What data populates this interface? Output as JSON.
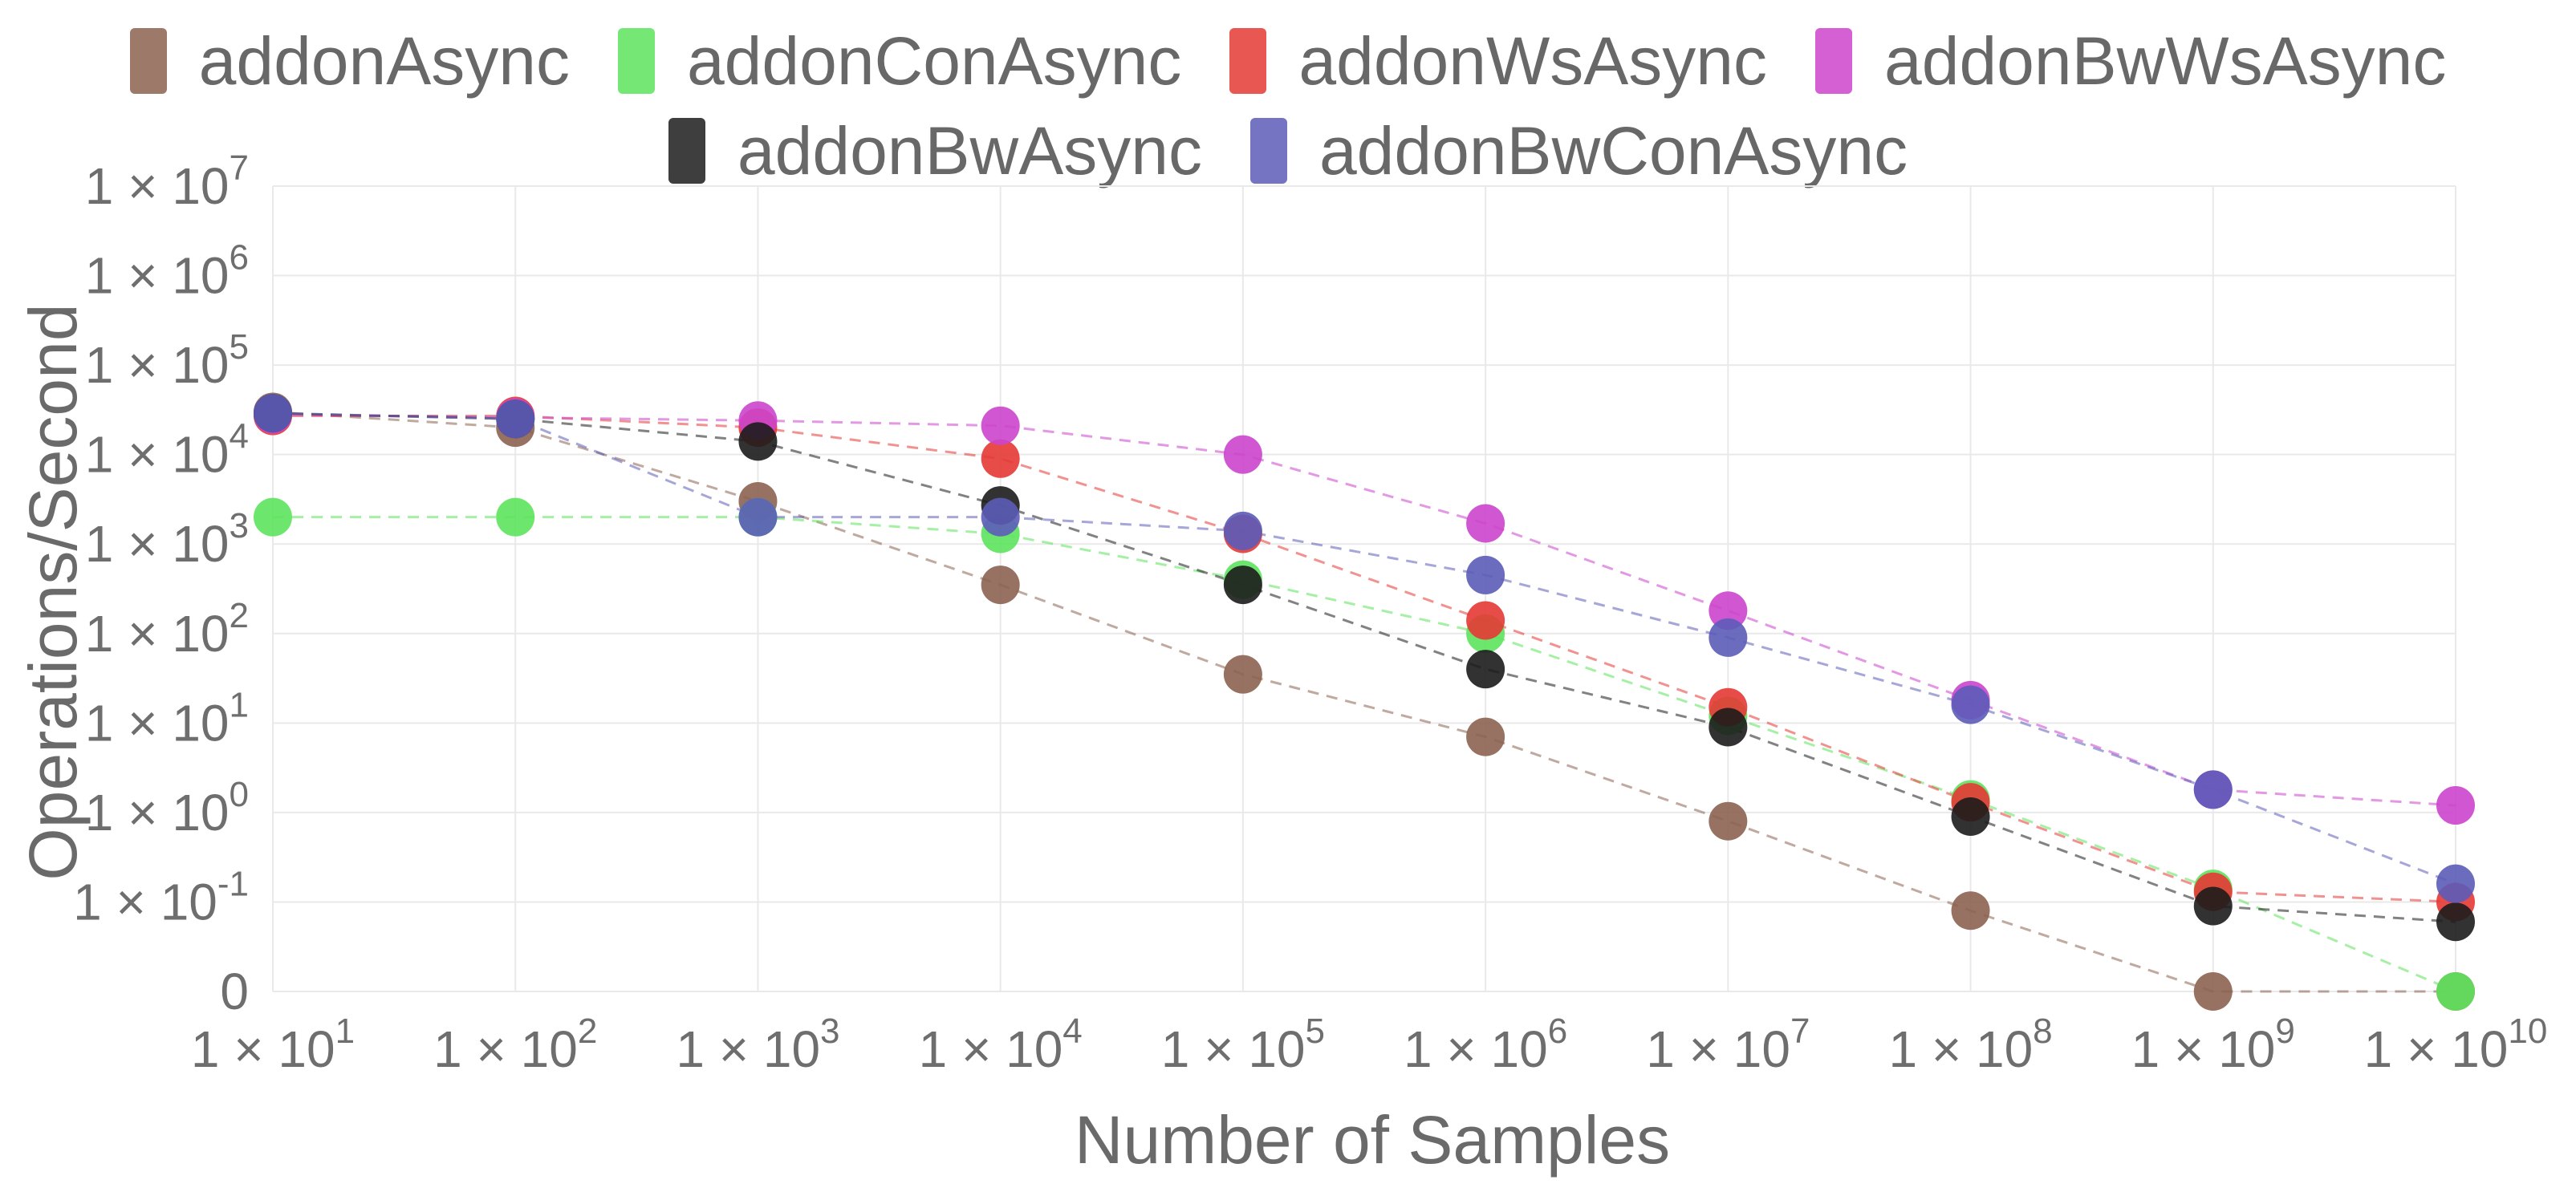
{
  "chart_data": {
    "type": "line",
    "title": "",
    "xlabel": "Number of Samples",
    "ylabel": "Operations/Second",
    "x_scale": "log",
    "y_scale": "log",
    "x": [
      10,
      100,
      1000,
      10000,
      100000,
      1000000,
      10000000,
      100000000,
      1000000000,
      10000000000
    ],
    "xlim_exp": [
      1,
      10
    ],
    "ylim_exp": [
      -2,
      7
    ],
    "grid": true,
    "legend_position": "top",
    "x_tick_labels": [
      {
        "base": "1 × 10",
        "exp": "1"
      },
      {
        "base": "1 × 10",
        "exp": "2"
      },
      {
        "base": "1 × 10",
        "exp": "3"
      },
      {
        "base": "1 × 10",
        "exp": "4"
      },
      {
        "base": "1 × 10",
        "exp": "5"
      },
      {
        "base": "1 × 10",
        "exp": "6"
      },
      {
        "base": "1 × 10",
        "exp": "7"
      },
      {
        "base": "1 × 10",
        "exp": "8"
      },
      {
        "base": "1 × 10",
        "exp": "9"
      },
      {
        "base": "1 × 10",
        "exp": "10"
      }
    ],
    "y_tick_labels": [
      {
        "value_exp": -2,
        "base": "0",
        "exp": ""
      },
      {
        "value_exp": -1,
        "base": "1 × 10",
        "exp": "-1"
      },
      {
        "value_exp": 0,
        "base": "1 × 10",
        "exp": "0"
      },
      {
        "value_exp": 1,
        "base": "1 × 10",
        "exp": "1"
      },
      {
        "value_exp": 2,
        "base": "1 × 10",
        "exp": "2"
      },
      {
        "value_exp": 3,
        "base": "1 × 10",
        "exp": "3"
      },
      {
        "value_exp": 4,
        "base": "1 × 10",
        "exp": "4"
      },
      {
        "value_exp": 5,
        "base": "1 × 10",
        "exp": "5"
      },
      {
        "value_exp": 6,
        "base": "1 × 10",
        "exp": "6"
      },
      {
        "value_exp": 7,
        "base": "1 × 10",
        "exp": "7"
      }
    ],
    "series": [
      {
        "name": "addonAsync",
        "color": "#8c6250",
        "values": [
          30000,
          20000,
          3000,
          350,
          35,
          7,
          0.8,
          0.08,
          0.01,
          0.01
        ]
      },
      {
        "name": "addonConAsync",
        "color": "#5de35d",
        "values": [
          2000,
          2000,
          2000,
          1300,
          400,
          100,
          12,
          1.4,
          0.14,
          0.01
        ]
      },
      {
        "name": "addonWsAsync",
        "color": "#e53935",
        "values": [
          27000,
          27000,
          20000,
          9000,
          1300,
          140,
          15,
          1.3,
          0.13,
          0.1
        ]
      },
      {
        "name": "addonBwWsAsync",
        "color": "#cc44cc",
        "values": [
          28000,
          26000,
          24000,
          21000,
          10000,
          1700,
          180,
          18,
          1.8,
          1.2
        ]
      },
      {
        "name": "addonBwAsync",
        "color": "#1c1c1c",
        "values": [
          29000,
          25000,
          14000,
          2700,
          350,
          40,
          9,
          0.9,
          0.09,
          0.06
        ]
      },
      {
        "name": "addonBwConAsync",
        "color": "#5c5cb8",
        "values": [
          29000,
          25000,
          2000,
          2000,
          1400,
          450,
          90,
          16,
          1.8,
          0.16
        ]
      }
    ]
  }
}
